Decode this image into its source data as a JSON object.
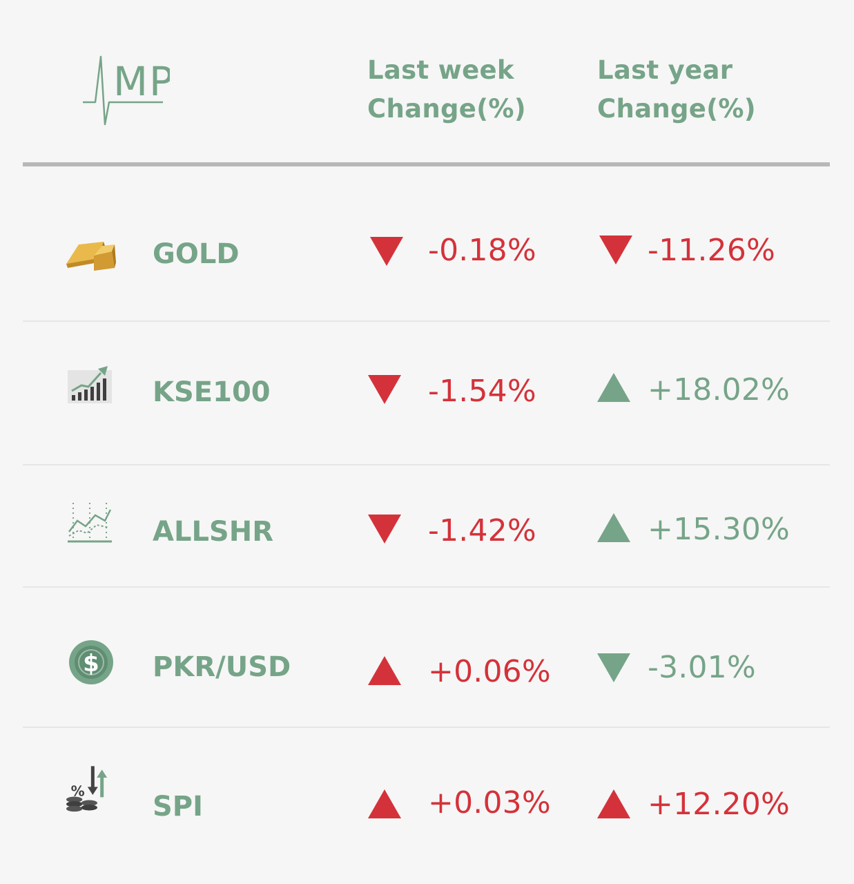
{
  "brand": {
    "logo_text": "MP"
  },
  "columns": {
    "week_line1": "Last week",
    "week_line2": "Change(%)",
    "year_line1": "Last year",
    "year_line2": "Change(%)"
  },
  "colors": {
    "accent_green": "#76a488",
    "negative_red": "#d4323a",
    "rule_gray": "#b8b8b8",
    "background": "#f6f6f6"
  },
  "rows": [
    {
      "name": "GOLD",
      "icon": "gold-bar-icon",
      "week": {
        "value": "-0.18%",
        "direction": "down",
        "color": "red"
      },
      "year": {
        "value": "-11.26%",
        "direction": "down",
        "color": "red"
      }
    },
    {
      "name": "KSE100",
      "icon": "bar-chart-growth-icon",
      "week": {
        "value": "-1.54%",
        "direction": "down",
        "color": "red"
      },
      "year": {
        "value": "+18.02%",
        "direction": "up",
        "color": "green"
      }
    },
    {
      "name": "ALLSHR",
      "icon": "line-chart-icon",
      "week": {
        "value": "-1.42%",
        "direction": "down",
        "color": "red"
      },
      "year": {
        "value": "+15.30%",
        "direction": "up",
        "color": "green"
      }
    },
    {
      "name": "PKR/USD",
      "icon": "dollar-coin-icon",
      "week": {
        "value": "+0.06%",
        "direction": "up",
        "color": "red"
      },
      "year": {
        "value": "-3.01%",
        "direction": "down",
        "color": "green"
      }
    },
    {
      "name": "SPI",
      "icon": "percent-coins-arrows-icon",
      "week": {
        "value": "+0.03%",
        "direction": "up",
        "color": "red"
      },
      "year": {
        "value": "+12.20%",
        "direction": "up",
        "color": "red"
      }
    }
  ]
}
